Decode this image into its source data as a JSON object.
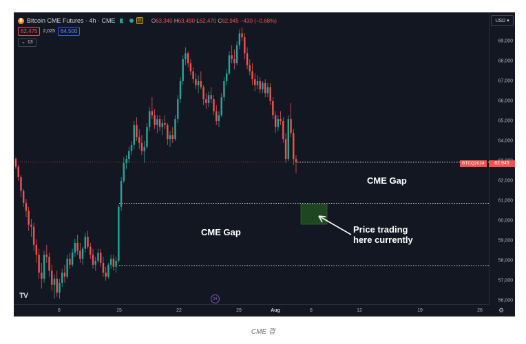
{
  "header": {
    "title": "Bitcoin CME Futures · 4h · CME",
    "badge": "D",
    "ohlc": {
      "o_label": "O",
      "o": "63,340",
      "h_label": "H",
      "h": "63,490",
      "l_label": "L",
      "l": "62,470",
      "c_label": "C",
      "c": "62,945",
      "change": "−430 (−0.68%)"
    }
  },
  "quote": {
    "bid": "62,475",
    "spread": "2,025",
    "ask": "64,500"
  },
  "indicators": {
    "count": "13"
  },
  "currency": "USD",
  "price_tag": {
    "symbol": "BTCQ2024",
    "price": "62,945"
  },
  "price_axis": [
    "69,000",
    "68,000",
    "67,000",
    "66,000",
    "65,000",
    "64,000",
    "63,000",
    "62,000",
    "61,000",
    "60,000",
    "59,000",
    "58,000",
    "57,000",
    "56,000"
  ],
  "time_axis": [
    "8",
    "15",
    "22",
    "29",
    "Aug",
    "6",
    "12",
    "19",
    "26"
  ],
  "annotations": {
    "gap_upper": "CME Gap",
    "gap_lower": "CME Gap",
    "note_line1": "Price trading",
    "note_line2": "here currently"
  },
  "event_marker": "24",
  "logo": "TV",
  "caption": "CME 갭",
  "colors": {
    "up": "#26a69a",
    "down": "#ef5350",
    "background": "#131722",
    "gap_box": "#1e4620"
  },
  "chart_data": {
    "type": "candlestick",
    "title": "Bitcoin CME Futures · 4h · CME",
    "ylim": [
      55900,
      69700
    ],
    "gaps": [
      {
        "label": "CME Gap",
        "level": 60880
      },
      {
        "label": "CME Gap",
        "level": 57760
      }
    ],
    "current_price": 62945,
    "candles": [
      [
        63100,
        63200,
        62600,
        62700
      ],
      [
        62700,
        62800,
        62000,
        62200
      ],
      [
        62200,
        62300,
        61200,
        61500
      ],
      [
        61500,
        61600,
        60700,
        60900
      ],
      [
        60900,
        61100,
        60200,
        60500
      ],
      [
        60500,
        60700,
        59500,
        59800
      ],
      [
        59800,
        60100,
        59200,
        59700
      ],
      [
        59700,
        59900,
        58500,
        58800
      ],
      [
        58800,
        59100,
        57900,
        58300
      ],
      [
        58300,
        58600,
        57100,
        57400
      ],
      [
        57400,
        57900,
        56600,
        57100
      ],
      [
        57100,
        58500,
        56900,
        58300
      ],
      [
        58300,
        58800,
        57900,
        58200
      ],
      [
        58200,
        58400,
        57200,
        57500
      ],
      [
        57500,
        57800,
        56500,
        56800
      ],
      [
        56800,
        57300,
        56100,
        57100
      ],
      [
        57100,
        57500,
        56200,
        56400
      ],
      [
        56400,
        57100,
        56100,
        56900
      ],
      [
        56900,
        57600,
        56700,
        57400
      ],
      [
        57400,
        57800,
        56900,
        57200
      ],
      [
        57200,
        58300,
        57100,
        58100
      ],
      [
        58100,
        58400,
        57600,
        57800
      ],
      [
        57800,
        58600,
        57700,
        58400
      ],
      [
        58400,
        59100,
        58200,
        58900
      ],
      [
        58900,
        59300,
        58300,
        58500
      ],
      [
        58500,
        58900,
        57900,
        58100
      ],
      [
        58100,
        58700,
        57800,
        58600
      ],
      [
        58600,
        59400,
        58400,
        59200
      ],
      [
        59200,
        59500,
        58600,
        58700
      ],
      [
        58700,
        58900,
        58100,
        58300
      ],
      [
        58300,
        58600,
        57600,
        57800
      ],
      [
        57800,
        58200,
        57500,
        58000
      ],
      [
        58000,
        58600,
        57900,
        58400
      ],
      [
        58400,
        58600,
        57700,
        57900
      ],
      [
        57900,
        58200,
        57200,
        57400
      ],
      [
        57400,
        57700,
        57000,
        57200
      ],
      [
        57200,
        57900,
        57100,
        57800
      ],
      [
        57800,
        58300,
        57600,
        58100
      ],
      [
        58100,
        58300,
        57500,
        57700
      ],
      [
        57700,
        58200,
        57400,
        58000
      ],
      [
        58000,
        60800,
        57900,
        60700
      ],
      [
        60700,
        62200,
        60500,
        62000
      ],
      [
        62000,
        63200,
        61900,
        62900
      ],
      [
        62900,
        63300,
        62600,
        63100
      ],
      [
        63100,
        63700,
        62900,
        63500
      ],
      [
        63500,
        64000,
        63300,
        63800
      ],
      [
        63800,
        65000,
        63600,
        64800
      ],
      [
        64800,
        65200,
        64000,
        64200
      ],
      [
        64200,
        64600,
        63600,
        63900
      ],
      [
        63900,
        64300,
        63300,
        63500
      ],
      [
        63500,
        64000,
        62900,
        63700
      ],
      [
        63700,
        64900,
        63600,
        64700
      ],
      [
        64700,
        65700,
        64500,
        65500
      ],
      [
        65500,
        66200,
        65100,
        65300
      ],
      [
        65300,
        65600,
        64600,
        64800
      ],
      [
        64800,
        65300,
        64400,
        65100
      ],
      [
        65100,
        65300,
        64500,
        64700
      ],
      [
        64700,
        65100,
        64300,
        64900
      ],
      [
        64900,
        65300,
        64600,
        64800
      ],
      [
        64800,
        64900,
        63800,
        64100
      ],
      [
        64100,
        64500,
        63700,
        64300
      ],
      [
        64300,
        64700,
        63900,
        64100
      ],
      [
        64100,
        65300,
        64000,
        65100
      ],
      [
        65100,
        66300,
        64900,
        66100
      ],
      [
        66100,
        67200,
        65900,
        67000
      ],
      [
        67000,
        68300,
        66800,
        68100
      ],
      [
        68100,
        68700,
        67800,
        68400
      ],
      [
        68400,
        68500,
        67700,
        67900
      ],
      [
        67900,
        68100,
        67300,
        67500
      ],
      [
        67500,
        67700,
        66900,
        67100
      ],
      [
        67100,
        67400,
        66600,
        66800
      ],
      [
        66800,
        67300,
        66400,
        67000
      ],
      [
        67000,
        67500,
        66600,
        66700
      ],
      [
        66700,
        66800,
        65800,
        66100
      ],
      [
        66100,
        66400,
        65600,
        65900
      ],
      [
        65900,
        66500,
        65700,
        66300
      ],
      [
        66300,
        66700,
        65900,
        66100
      ],
      [
        66100,
        66300,
        65300,
        65500
      ],
      [
        65500,
        65800,
        64800,
        65000
      ],
      [
        65000,
        65500,
        64700,
        65300
      ],
      [
        65300,
        66400,
        65200,
        66200
      ],
      [
        66200,
        67200,
        66000,
        67000
      ],
      [
        67000,
        67600,
        66800,
        67400
      ],
      [
        67400,
        68500,
        67300,
        68300
      ],
      [
        68300,
        68800,
        67900,
        68100
      ],
      [
        68100,
        68600,
        67600,
        67900
      ],
      [
        67900,
        69000,
        67800,
        68800
      ],
      [
        68800,
        69600,
        68600,
        69400
      ],
      [
        69400,
        69700,
        69000,
        69200
      ],
      [
        69200,
        69400,
        68100,
        68400
      ],
      [
        68400,
        68700,
        67600,
        67800
      ],
      [
        67800,
        68100,
        67300,
        67500
      ],
      [
        67500,
        67900,
        66800,
        67100
      ],
      [
        67100,
        67400,
        66500,
        66800
      ],
      [
        66800,
        67300,
        66600,
        67000
      ],
      [
        67000,
        67200,
        66400,
        66600
      ],
      [
        66600,
        67000,
        66400,
        66900
      ],
      [
        66900,
        67100,
        66200,
        66400
      ],
      [
        66400,
        66900,
        66200,
        66700
      ],
      [
        66700,
        66900,
        65800,
        66000
      ],
      [
        66000,
        66200,
        65100,
        65300
      ],
      [
        65300,
        65500,
        64400,
        64700
      ],
      [
        64700,
        65300,
        64500,
        65100
      ],
      [
        65100,
        65500,
        64800,
        65000
      ],
      [
        65000,
        65200,
        63900,
        64100
      ],
      [
        64100,
        64400,
        62900,
        63100
      ],
      [
        63100,
        65300,
        63000,
        65100
      ],
      [
        65100,
        65900,
        64200,
        64400
      ],
      [
        64400,
        64600,
        62800,
        63100
      ],
      [
        63100,
        63300,
        62400,
        62945
      ]
    ]
  }
}
